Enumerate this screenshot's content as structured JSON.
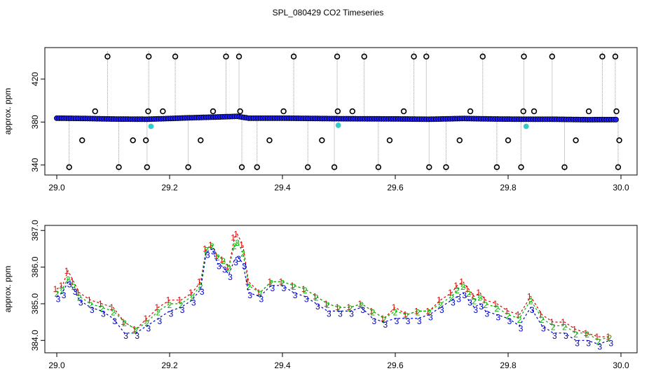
{
  "title": "SPL_080429  CO2 Timeseries",
  "chart_data": [
    {
      "type": "scatter",
      "title": "",
      "xlabel": "",
      "ylabel": "approx. ppm",
      "xlim": [
        29.0,
        30.0
      ],
      "ylim": [
        332,
        448
      ],
      "xticks": [
        29.0,
        29.2,
        29.4,
        29.6,
        29.8,
        30.0
      ],
      "xtick_labels": [
        "29.0",
        "29.2",
        "29.4",
        "29.6",
        "29.8",
        "30.0"
      ],
      "yticks": [
        340,
        380,
        420
      ],
      "ytick_labels": [
        "340",
        "380",
        "420"
      ],
      "grid": false,
      "baseline": [
        [
          29.0,
          383.6
        ],
        [
          29.05,
          383.3
        ],
        [
          29.1,
          382.8
        ],
        [
          29.16,
          382.6
        ],
        [
          29.2,
          383.3
        ],
        [
          29.25,
          384.2
        ],
        [
          29.28,
          384.6
        ],
        [
          29.32,
          385.3
        ],
        [
          29.34,
          383.6
        ],
        [
          29.4,
          383.6
        ],
        [
          29.5,
          383.1
        ],
        [
          29.6,
          382.9
        ],
        [
          29.66,
          382.6
        ],
        [
          29.72,
          383.3
        ],
        [
          29.78,
          382.8
        ],
        [
          29.83,
          382.6
        ],
        [
          29.88,
          382.6
        ],
        [
          29.94,
          382.2
        ],
        [
          29.995,
          382.3
        ]
      ],
      "outliers_high": [
        29.09,
        29.163,
        29.21,
        29.3,
        29.323,
        29.42,
        29.497,
        29.545,
        29.633,
        29.655,
        29.755,
        29.828,
        29.878,
        29.967,
        29.99
      ],
      "outliers_low": [
        29.022,
        29.11,
        29.16,
        29.233,
        29.328,
        29.355,
        29.445,
        29.492,
        29.57,
        29.66,
        29.69,
        29.78,
        29.823,
        29.9,
        29.995
      ],
      "outliers_mid_high": [
        29.068,
        29.162,
        29.188,
        29.277,
        29.325,
        29.402,
        29.498,
        29.524,
        29.615,
        29.733,
        29.827,
        29.846,
        29.943,
        29.992
      ],
      "outliers_mid_low": [
        29.045,
        29.135,
        29.158,
        29.255,
        29.377,
        29.47,
        29.59,
        29.714,
        29.8,
        29.92,
        29.997
      ],
      "cyan_points": [
        [
          29.167,
          376
        ],
        [
          29.499,
          377
        ],
        [
          29.832,
          376
        ]
      ],
      "colors": {
        "ring": "#000000",
        "fill": "#1c1cff",
        "cyan": "#33cccc",
        "line": "#999999"
      }
    },
    {
      "type": "line",
      "title": "",
      "xlabel": "",
      "ylabel": "approx. ppm",
      "xlim": [
        29.0,
        30.0
      ],
      "ylim": [
        383.7,
        387.1
      ],
      "xticks": [
        29.0,
        29.2,
        29.4,
        29.6,
        29.8,
        30.0
      ],
      "xtick_labels": [
        "29.0",
        "29.2",
        "29.4",
        "29.6",
        "29.8",
        "30.0"
      ],
      "yticks": [
        384.0,
        385.0,
        386.0,
        387.0
      ],
      "ytick_labels": [
        "384.0",
        "385.0",
        "386.0",
        "387.0"
      ],
      "grid": false,
      "x": [
        29.0,
        29.01,
        29.02,
        29.03,
        29.04,
        29.06,
        29.08,
        29.1,
        29.12,
        29.14,
        29.16,
        29.18,
        29.2,
        29.22,
        29.24,
        29.255,
        29.265,
        29.275,
        29.285,
        29.295,
        29.305,
        29.315,
        29.32,
        29.33,
        29.34,
        29.36,
        29.38,
        29.4,
        29.42,
        29.44,
        29.46,
        29.48,
        29.5,
        29.52,
        29.54,
        29.56,
        29.58,
        29.6,
        29.62,
        29.64,
        29.66,
        29.68,
        29.7,
        29.71,
        29.72,
        29.73,
        29.74,
        29.75,
        29.76,
        29.78,
        29.8,
        29.82,
        29.84,
        29.86,
        29.88,
        29.9,
        29.92,
        29.94,
        29.96,
        29.98
      ],
      "series": [
        {
          "name": "1",
          "color": "#e00000",
          "values": [
            385.4,
            385.5,
            385.9,
            385.6,
            385.3,
            385.1,
            385.0,
            384.9,
            384.5,
            384.3,
            384.6,
            384.9,
            385.1,
            385.1,
            385.3,
            385.6,
            386.5,
            386.6,
            386.3,
            386.2,
            386.0,
            386.8,
            386.9,
            386.6,
            385.6,
            385.3,
            385.6,
            385.6,
            385.5,
            385.4,
            385.2,
            385.0,
            384.9,
            384.9,
            385.0,
            384.8,
            384.6,
            384.9,
            384.7,
            384.8,
            384.8,
            385.1,
            385.3,
            385.5,
            385.6,
            385.4,
            385.2,
            385.3,
            385.1,
            385.0,
            384.8,
            384.7,
            385.2,
            384.7,
            384.5,
            384.5,
            384.3,
            384.2,
            384.1,
            384.1
          ]
        },
        {
          "name": "2",
          "color": "#00b000",
          "values": [
            385.3,
            385.4,
            385.7,
            385.5,
            385.2,
            385.0,
            384.9,
            384.8,
            384.5,
            384.3,
            384.5,
            384.8,
            385.0,
            385.0,
            385.2,
            385.5,
            386.5,
            386.6,
            386.3,
            386.2,
            386.0,
            386.6,
            386.7,
            386.4,
            385.5,
            385.3,
            385.6,
            385.6,
            385.5,
            385.4,
            385.2,
            385.0,
            384.9,
            384.9,
            385.0,
            384.8,
            384.6,
            384.8,
            384.7,
            384.8,
            384.8,
            385.0,
            385.2,
            385.4,
            385.5,
            385.3,
            385.1,
            385.2,
            385.0,
            384.9,
            384.7,
            384.6,
            385.1,
            384.6,
            384.4,
            384.4,
            384.2,
            384.2,
            384.0,
            384.1
          ]
        },
        {
          "name": "3",
          "color": "#0000cc",
          "values": [
            385.2,
            385.3,
            385.6,
            385.4,
            385.1,
            384.9,
            384.8,
            384.6,
            384.2,
            384.2,
            384.4,
            384.6,
            384.8,
            384.9,
            385.1,
            385.4,
            386.4,
            386.5,
            386.1,
            386.0,
            385.8,
            386.2,
            386.3,
            386.1,
            385.3,
            385.2,
            385.5,
            385.5,
            385.3,
            385.2,
            385.0,
            384.8,
            384.8,
            384.8,
            384.9,
            384.6,
            384.5,
            384.6,
            384.6,
            384.6,
            384.7,
            384.9,
            385.1,
            385.2,
            385.3,
            385.1,
            384.9,
            385.0,
            384.8,
            384.7,
            384.6,
            384.4,
            384.9,
            384.4,
            384.2,
            384.2,
            384.0,
            384.0,
            383.9,
            384.0
          ]
        }
      ]
    }
  ]
}
